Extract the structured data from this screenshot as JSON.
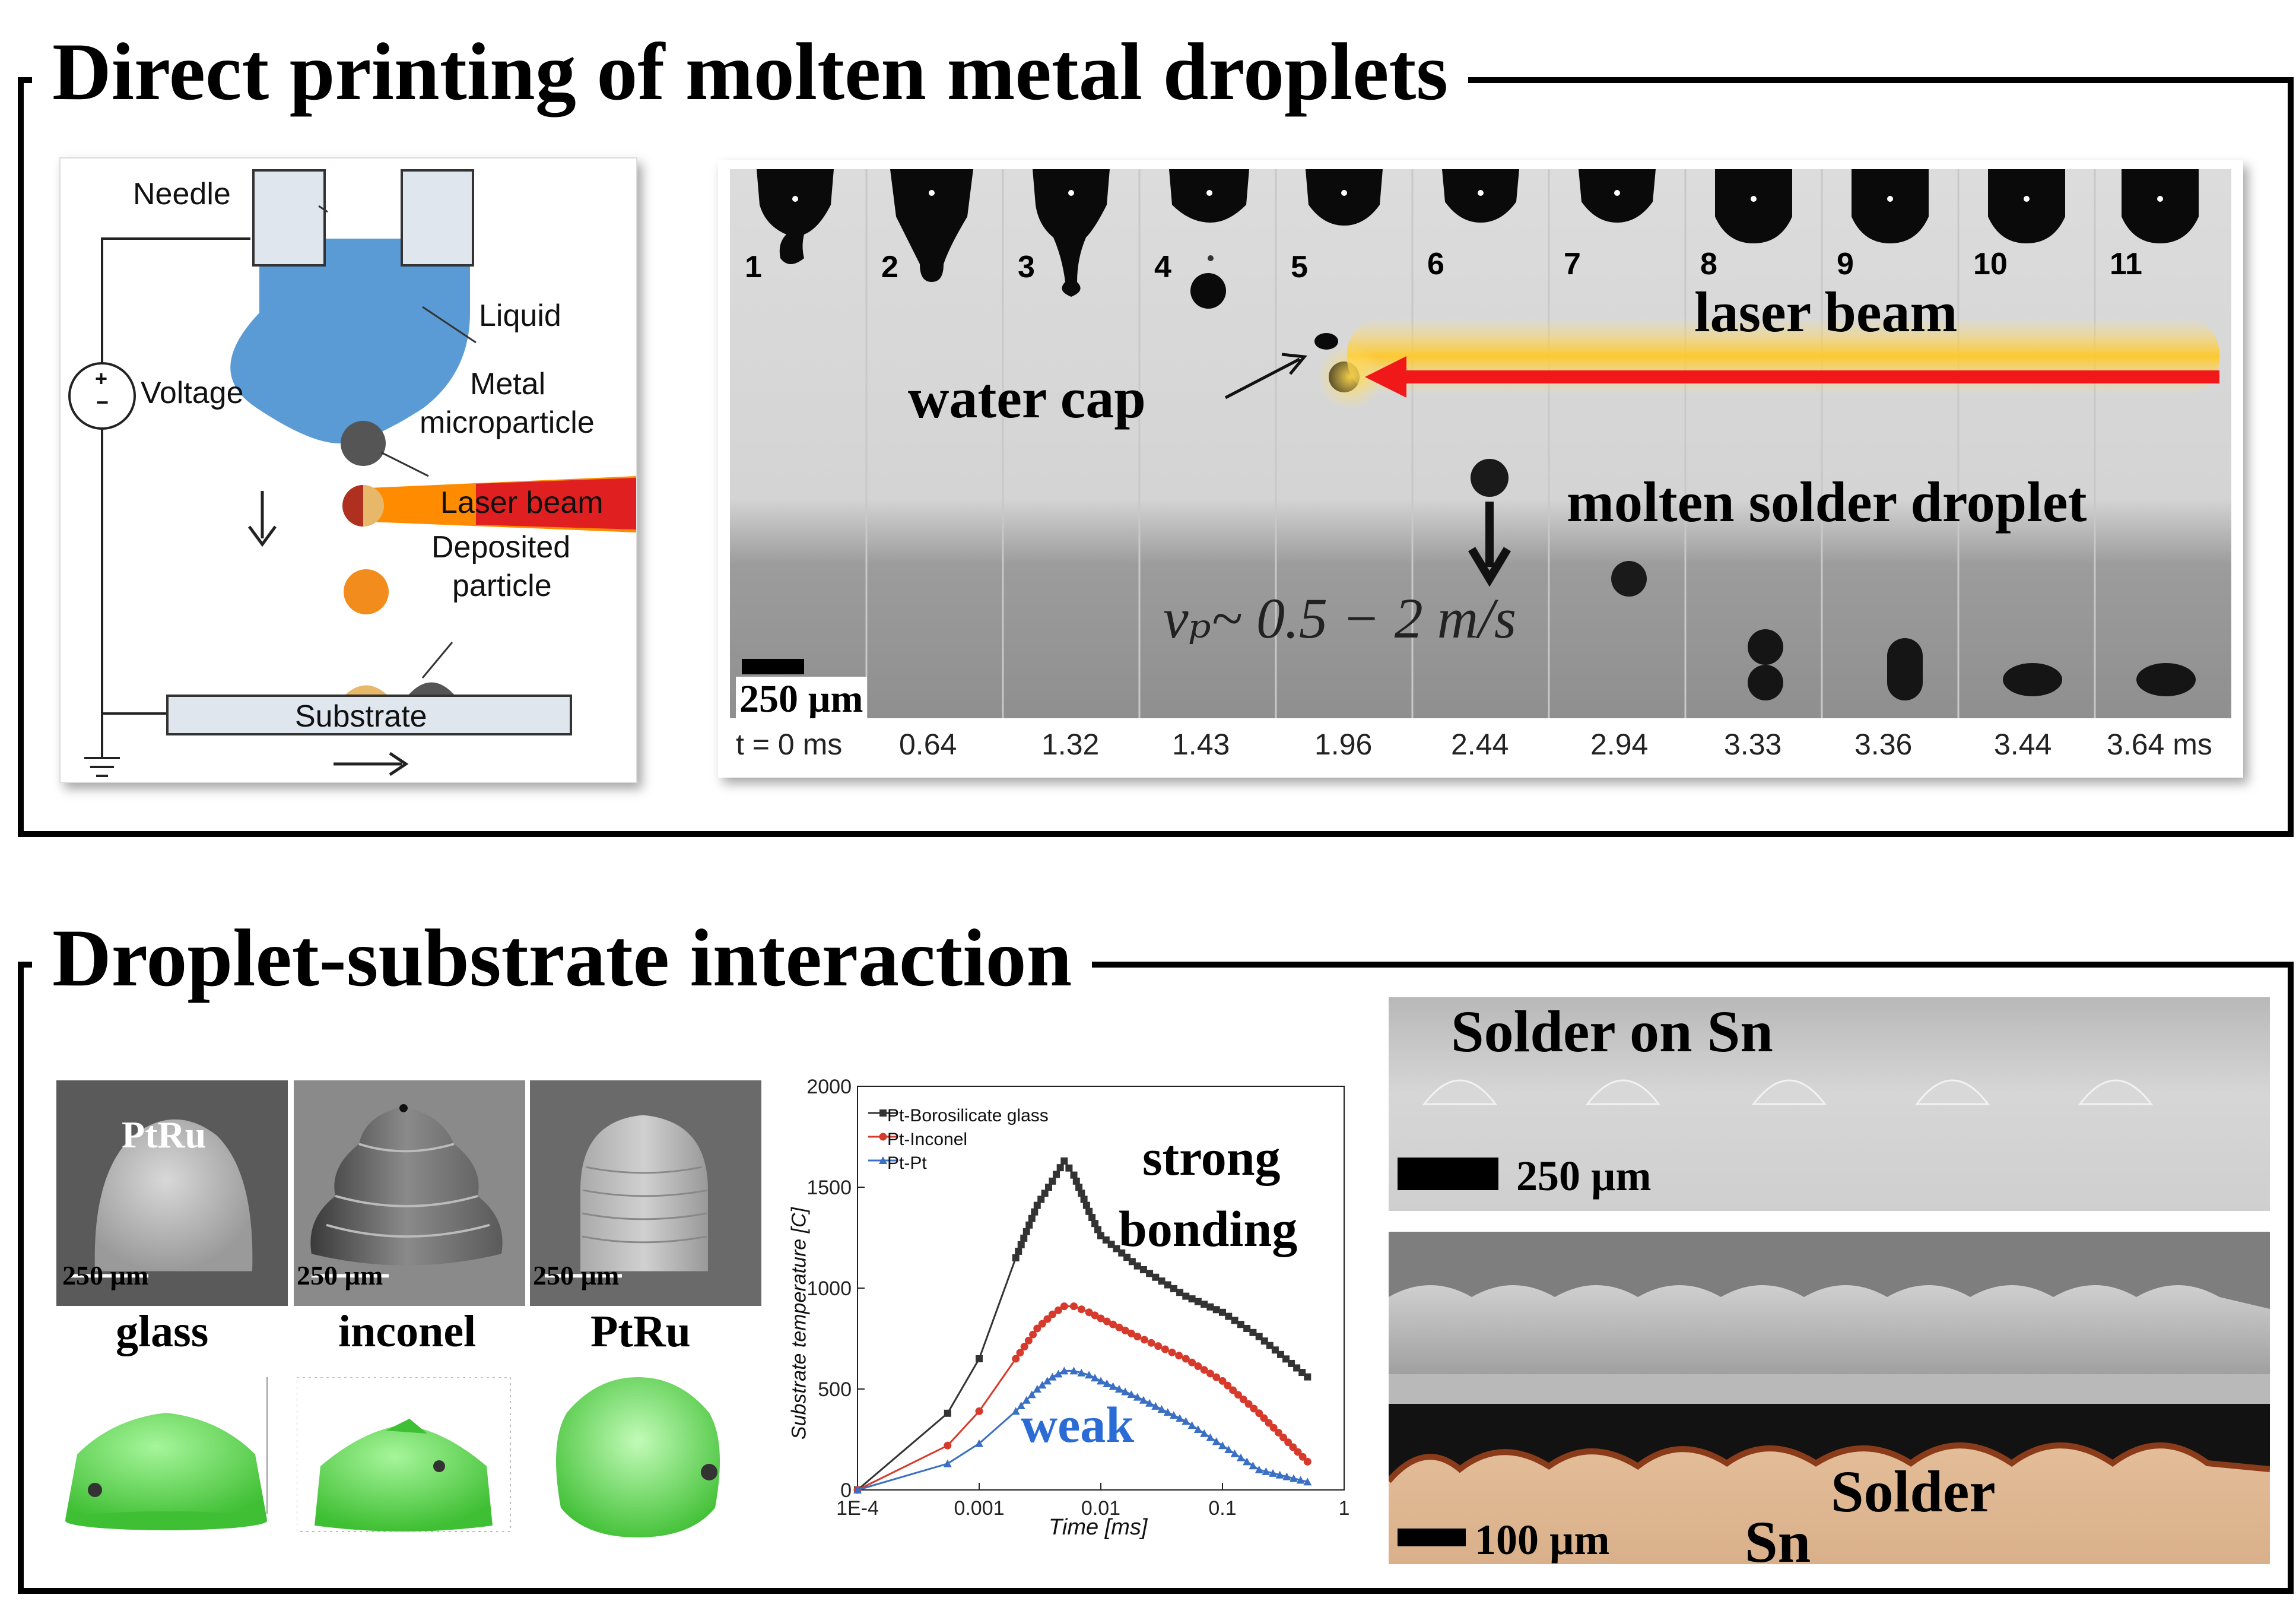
{
  "sections": [
    {
      "title": "Direct printing of molten metal droplets"
    },
    {
      "title": "Droplet-substrate interaction"
    }
  ],
  "schematic": {
    "needle": "Needle",
    "liquid": "Liquid",
    "voltage": "Voltage",
    "metal_line1": "Metal",
    "metal_line2": "microparticle",
    "laser": "Laser beam",
    "deposited_line1": "Deposited",
    "deposited_line2": "particle",
    "substrate": "Substrate",
    "plus": "+",
    "minus": "−"
  },
  "sequence": {
    "frame_numbers": [
      "1",
      "2",
      "3",
      "4",
      "5",
      "6",
      "7",
      "8",
      "9",
      "10",
      "11"
    ],
    "times": [
      "t = 0 ms",
      "0.64",
      "1.32",
      "1.43",
      "1.96",
      "2.44",
      "2.94",
      "3.33",
      "3.36",
      "3.44",
      "3.64 ms"
    ],
    "laser_beam": "laser beam",
    "water_cap": "water cap",
    "molten": "molten solder droplet",
    "velocity": "vₚ~ 0.5 − 2 m/s",
    "scale": "250 µm"
  },
  "sem_images": [
    {
      "overlay": "PtRu",
      "scale": "250 µm",
      "caption": "glass"
    },
    {
      "overlay": "",
      "scale": "250 µm",
      "caption": "inconel"
    },
    {
      "overlay": "",
      "scale": "250 µm",
      "caption": "PtRu"
    }
  ],
  "chart_data": {
    "type": "line",
    "xlabel": "Time [ms]",
    "ylabel": "Substrate temperature [C]",
    "xscale": "log",
    "xlim": [
      0.0001,
      1
    ],
    "ylim": [
      0,
      2000
    ],
    "x_ticks": [
      "1E-4",
      "0.001",
      "0.01",
      "0.1",
      "1"
    ],
    "y_ticks": [
      "0",
      "500",
      "1000",
      "1500",
      "2000"
    ],
    "legend_position": "top-left",
    "series": [
      {
        "name": "Pt-Borosilicate glass",
        "color": "#333333",
        "marker": "square",
        "x": [
          0.0001,
          0.00055,
          0.001,
          0.002,
          0.003,
          0.004,
          0.005,
          0.006,
          0.008,
          0.01,
          0.02,
          0.05,
          0.1,
          0.2,
          0.5
        ],
        "y": [
          0,
          380,
          650,
          1150,
          1410,
          1530,
          1630,
          1560,
          1380,
          1260,
          1110,
          960,
          880,
          760,
          560
        ]
      },
      {
        "name": "Pt-Inconel",
        "color": "#d63a2c",
        "marker": "circle",
        "x": [
          0.0001,
          0.00055,
          0.001,
          0.002,
          0.003,
          0.004,
          0.005,
          0.006,
          0.008,
          0.01,
          0.02,
          0.05,
          0.1,
          0.2,
          0.5
        ],
        "y": [
          0,
          220,
          390,
          650,
          800,
          870,
          910,
          910,
          880,
          850,
          760,
          650,
          540,
          380,
          140
        ]
      },
      {
        "name": "Pt-Pt",
        "color": "#3a6fc4",
        "marker": "triangle",
        "x": [
          0.0001,
          0.00055,
          0.001,
          0.002,
          0.003,
          0.004,
          0.005,
          0.006,
          0.008,
          0.01,
          0.02,
          0.05,
          0.1,
          0.2,
          0.5
        ],
        "y": [
          0,
          130,
          230,
          390,
          500,
          560,
          590,
          590,
          570,
          540,
          460,
          340,
          220,
          100,
          40
        ]
      }
    ],
    "annotations": [
      "strong",
      "bonding",
      "weak"
    ]
  },
  "right_panel": {
    "solder_on_sn": "Solder on Sn",
    "scale_top": "250 µm",
    "solder": "Solder",
    "sn": "Sn",
    "scale_bottom": "100 µm"
  },
  "colors": {
    "schematic_blue": "#5b9bd5",
    "laser_red": "#e02020",
    "laser_orange": "#ff8c00",
    "droplet_green": "#5ad14a"
  }
}
